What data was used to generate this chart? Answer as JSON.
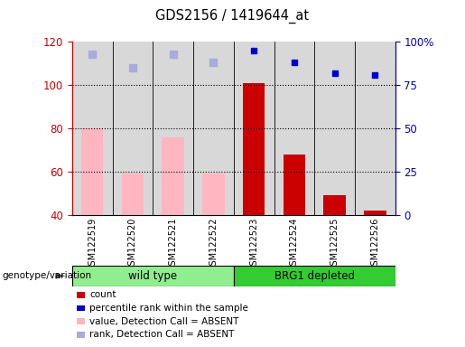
{
  "title": "GDS2156 / 1419644_at",
  "samples": [
    "GSM122519",
    "GSM122520",
    "GSM122521",
    "GSM122522",
    "GSM122523",
    "GSM122524",
    "GSM122525",
    "GSM122526"
  ],
  "bar_values_absent": [
    80,
    59,
    76,
    59,
    0,
    0,
    0,
    0
  ],
  "bar_values_present": [
    0,
    0,
    0,
    0,
    101,
    68,
    49,
    42
  ],
  "rank_absent": [
    93,
    85,
    93,
    88,
    0,
    0,
    0,
    0
  ],
  "rank_present_blue": [
    0,
    0,
    0,
    0,
    95,
    88,
    82,
    81
  ],
  "ylim_left": [
    40,
    120
  ],
  "ylim_right": [
    0,
    100
  ],
  "yticks_left": [
    40,
    60,
    80,
    100,
    120
  ],
  "yticks_right": [
    0,
    25,
    50,
    75,
    100
  ],
  "ytick_labels_right": [
    "0",
    "25",
    "50",
    "75",
    "100%"
  ],
  "grid_values": [
    60,
    80,
    100
  ],
  "absent_bar_color": "#FFB6C1",
  "present_bar_color": "#CC0000",
  "absent_rank_color": "#AAAADD",
  "present_rank_color": "#0000CC",
  "left_axis_color": "#CC0000",
  "right_axis_color": "#0000CC",
  "col_bg_color": "#D8D8D8",
  "wt_color": "#90EE90",
  "brg_color": "#33CC33",
  "legend_items": [
    {
      "label": "count",
      "color": "#CC0000"
    },
    {
      "label": "percentile rank within the sample",
      "color": "#0000CC"
    },
    {
      "label": "value, Detection Call = ABSENT",
      "color": "#FFB6C1"
    },
    {
      "label": "rank, Detection Call = ABSENT",
      "color": "#AAAADD"
    }
  ]
}
